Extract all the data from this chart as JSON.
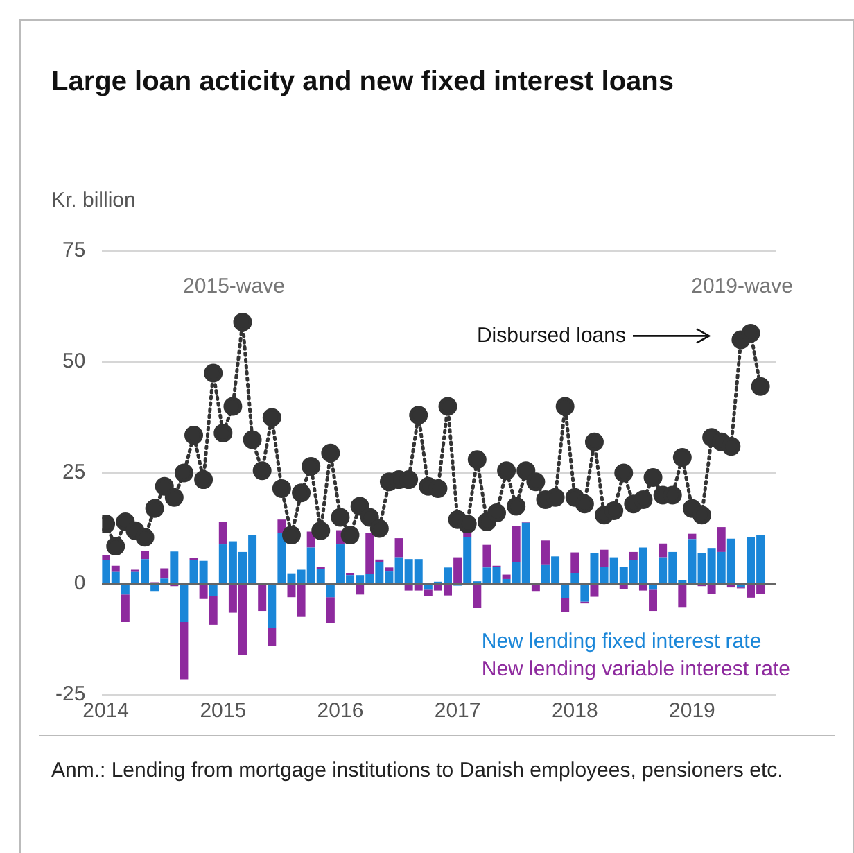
{
  "chart_data": {
    "type": "bar",
    "stacked": true,
    "title": "Large loan acticity and new fixed interest loans",
    "ylabel": "Kr. billion",
    "x": [
      "2014-01",
      "2014-02",
      "2014-03",
      "2014-04",
      "2014-05",
      "2014-06",
      "2014-07",
      "2014-08",
      "2014-09",
      "2014-10",
      "2014-11",
      "2014-12",
      "2015-01",
      "2015-02",
      "2015-03",
      "2015-04",
      "2015-05",
      "2015-06",
      "2015-07",
      "2015-08",
      "2015-09",
      "2015-10",
      "2015-11",
      "2015-12",
      "2016-01",
      "2016-02",
      "2016-03",
      "2016-04",
      "2016-05",
      "2016-06",
      "2016-07",
      "2016-08",
      "2016-09",
      "2016-10",
      "2016-11",
      "2016-12",
      "2017-01",
      "2017-02",
      "2017-03",
      "2017-04",
      "2017-05",
      "2017-06",
      "2017-07",
      "2017-08",
      "2017-09",
      "2017-10",
      "2017-11",
      "2017-12",
      "2018-01",
      "2018-02",
      "2018-03",
      "2018-04",
      "2018-05",
      "2018-06",
      "2018-07",
      "2018-08",
      "2018-09",
      "2018-10",
      "2018-11",
      "2018-12",
      "2019-01",
      "2019-02",
      "2019-03",
      "2019-04",
      "2019-05",
      "2019-06",
      "2019-07",
      "2019-08"
    ],
    "series": [
      {
        "name": "New lending fixed interest rate",
        "color": "#1a86d8",
        "values": [
          5.3,
          2.7,
          -2.4,
          2.7,
          5.6,
          -1.6,
          1.2,
          7.3,
          -8.6,
          5.4,
          5.2,
          -2.7,
          8.9,
          9.6,
          7.2,
          11,
          0.3,
          -10,
          11.5,
          2.4,
          3.2,
          8.2,
          3.3,
          -3,
          8.9,
          2,
          2,
          2.3,
          5,
          2.8,
          6,
          5.6,
          5.6,
          -1.3,
          0.5,
          3.7,
          -0.4,
          10.5,
          0.6,
          3.7,
          3.8,
          1.1,
          5,
          13.8,
          0,
          4.4,
          6.2,
          -3.2,
          2.5,
          -4,
          7,
          3.8,
          6,
          3.8,
          5.4,
          8.2,
          -1.3,
          6,
          7.2,
          0.8,
          10.1,
          6.9,
          8.1,
          7.2,
          10.2,
          -0.8,
          10.6,
          11
        ]
      },
      {
        "name": "New lending variable interest rate",
        "color": "#8e2a9e",
        "values": [
          1.2,
          1.4,
          -6.2,
          0.5,
          1.8,
          0.4,
          2.3,
          -0.5,
          -12.9,
          0.4,
          -3.4,
          -6.5,
          5.1,
          -6.5,
          -16.1,
          0,
          -6.1,
          -4,
          3,
          -3,
          -7.3,
          3.6,
          0.5,
          -5.9,
          3.2,
          0.5,
          -2.4,
          9.2,
          0.5,
          0.9,
          4.3,
          -1.5,
          -1.5,
          -1.4,
          -1.5,
          -2.6,
          6,
          1.5,
          -5.4,
          5.1,
          0.3,
          1,
          8,
          0.2,
          -1.6,
          5.4,
          0,
          -3.2,
          4.6,
          -0.4,
          -2.9,
          3.9,
          0,
          -1.1,
          1.8,
          -1.5,
          -4.8,
          3.1,
          -0.2,
          -5.2,
          1.2,
          -0.5,
          -2.2,
          5.6,
          -0.8,
          -0.2,
          -3.1,
          -2.3
        ]
      },
      {
        "name": "Disbursed loans",
        "type": "line",
        "color": "#333333",
        "marker": "circle",
        "line_style": "dotted",
        "values": [
          13.5,
          8.5,
          14,
          12,
          10.5,
          17,
          22,
          19.5,
          25,
          33.5,
          23.5,
          47.5,
          34,
          40,
          59,
          32.5,
          25.5,
          37.5,
          21.5,
          11,
          20.5,
          26.5,
          12,
          29.5,
          15,
          11,
          17.5,
          15,
          12.5,
          23,
          23.5,
          23.5,
          38,
          22,
          21.5,
          40,
          14.5,
          13.5,
          28,
          14,
          16,
          25.5,
          17.5,
          25.5,
          23,
          19,
          19.5,
          40,
          19.5,
          18,
          32,
          15.5,
          16.5,
          25,
          18,
          19,
          24,
          20,
          20,
          28.5,
          17,
          15.5,
          33,
          32,
          31,
          55,
          56.5,
          44.5
        ]
      }
    ],
    "xlim": [
      "2013-12-20",
      "2019-09-20"
    ],
    "xticks": [
      {
        "value": "2014",
        "label": "2014"
      },
      {
        "value": "2015",
        "label": "2015"
      },
      {
        "value": "2016",
        "label": "2016"
      },
      {
        "value": "2017",
        "label": "2017"
      },
      {
        "value": "2018",
        "label": "2018"
      },
      {
        "value": "2019",
        "label": "2019"
      }
    ],
    "ylim": [
      -25,
      75
    ],
    "yticks": [
      -25,
      0,
      25,
      50,
      75
    ],
    "grid": "y",
    "legend": "bottom right",
    "annotations": [
      "2015-wave",
      "2019-wave",
      "Anm.:  Lending from mortgage institutions to Danish employees, pensioners etc."
    ]
  }
}
